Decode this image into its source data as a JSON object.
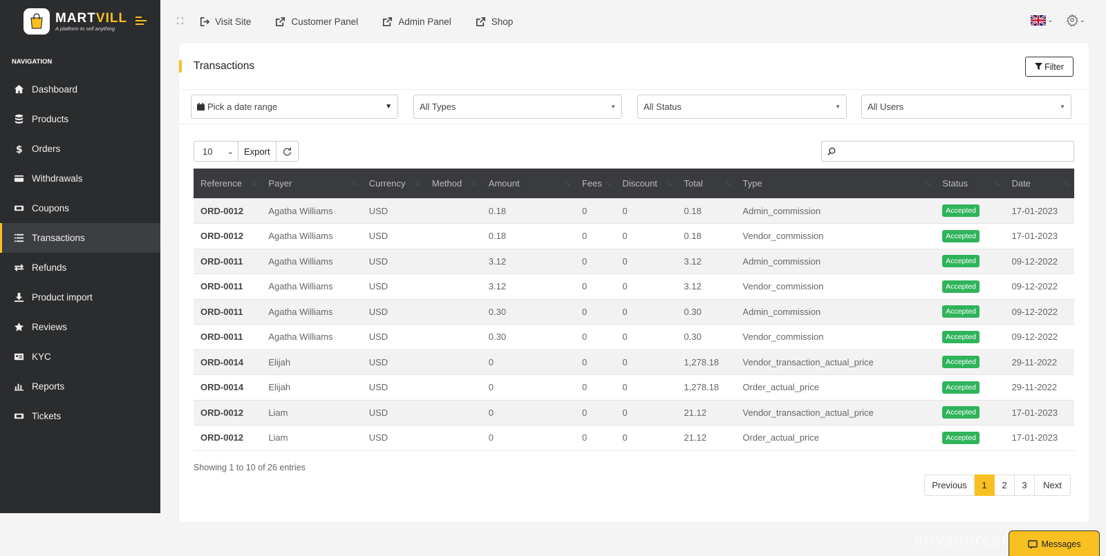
{
  "brand": {
    "name_part1": "MART",
    "name_part2": "VILL",
    "tagline": "A platform to sell anything"
  },
  "sidebar": {
    "heading": "NAVIGATION",
    "items": [
      {
        "label": "Dashboard",
        "icon": "home-icon"
      },
      {
        "label": "Products",
        "icon": "database-icon"
      },
      {
        "label": "Orders",
        "icon": "dollar-icon"
      },
      {
        "label": "Withdrawals",
        "icon": "card-icon"
      },
      {
        "label": "Coupons",
        "icon": "ticket-icon"
      },
      {
        "label": "Transactions",
        "icon": "list-icon",
        "active": true
      },
      {
        "label": "Refunds",
        "icon": "exchange-icon"
      },
      {
        "label": "Product import",
        "icon": "download-icon"
      },
      {
        "label": "Reviews",
        "icon": "star-icon"
      },
      {
        "label": "KYC",
        "icon": "id-card-icon"
      },
      {
        "label": "Reports",
        "icon": "bar-chart-icon"
      },
      {
        "label": "Tickets",
        "icon": "ticket-icon"
      }
    ]
  },
  "topbar": {
    "links": [
      {
        "label": "Visit Site",
        "icon": "sign-in-icon"
      },
      {
        "label": "Customer Panel",
        "icon": "external-link-icon"
      },
      {
        "label": "Admin Panel",
        "icon": "external-link-icon"
      },
      {
        "label": "Shop",
        "icon": "external-link-icon"
      }
    ],
    "language_flag": "uk-flag-icon"
  },
  "page": {
    "title": "Transactions",
    "filter_label": "Filter",
    "date_range_placeholder": "Pick a date range",
    "type_select": "All Types",
    "status_select": "All Status",
    "users_select": "All Users",
    "page_length": "10",
    "export_label": "Export"
  },
  "table": {
    "columns": [
      "Reference",
      "Payer",
      "Currency",
      "Method",
      "Amount",
      "Fees",
      "Discount",
      "Total",
      "Type",
      "Status",
      "Date"
    ],
    "rows": [
      [
        "ORD-0012",
        "Agatha Williams",
        "USD",
        "",
        "0.18",
        "0",
        "0",
        "0.18",
        "Admin_commission",
        "Accepted",
        "17-01-2023"
      ],
      [
        "ORD-0012",
        "Agatha Williams",
        "USD",
        "",
        "0.18",
        "0",
        "0",
        "0.18",
        "Vendor_commission",
        "Accepted",
        "17-01-2023"
      ],
      [
        "ORD-0011",
        "Agatha Williams",
        "USD",
        "",
        "3.12",
        "0",
        "0",
        "3.12",
        "Admin_commission",
        "Accepted",
        "09-12-2022"
      ],
      [
        "ORD-0011",
        "Agatha Williams",
        "USD",
        "",
        "3.12",
        "0",
        "0",
        "3.12",
        "Vendor_commission",
        "Accepted",
        "09-12-2022"
      ],
      [
        "ORD-0011",
        "Agatha Williams",
        "USD",
        "",
        "0.30",
        "0",
        "0",
        "0.30",
        "Admin_commission",
        "Accepted",
        "09-12-2022"
      ],
      [
        "ORD-0011",
        "Agatha Williams",
        "USD",
        "",
        "0.30",
        "0",
        "0",
        "0.30",
        "Vendor_commission",
        "Accepted",
        "09-12-2022"
      ],
      [
        "ORD-0014",
        "Elijah",
        "USD",
        "",
        "0",
        "0",
        "0",
        "1,278.18",
        "Vendor_transaction_actual_price",
        "Accepted",
        "29-11-2022"
      ],
      [
        "ORD-0014",
        "Elijah",
        "USD",
        "",
        "0",
        "0",
        "0",
        "1,278.18",
        "Order_actual_price",
        "Accepted",
        "29-11-2022"
      ],
      [
        "ORD-0012",
        "Liam",
        "USD",
        "",
        "0",
        "0",
        "0",
        "21.12",
        "Vendor_transaction_actual_price",
        "Accepted",
        "17-01-2023"
      ],
      [
        "ORD-0012",
        "Liam",
        "USD",
        "",
        "0",
        "0",
        "0",
        "21.12",
        "Order_actual_price",
        "Accepted",
        "17-01-2023"
      ]
    ]
  },
  "footer": {
    "info": "Showing 1 to 10 of 26 entries",
    "previous": "Previous",
    "pages": [
      "1",
      "2",
      "3"
    ],
    "active_page": "1",
    "next": "Next"
  },
  "messages_label": "Messages",
  "watermark": "anysourcecode.com",
  "colors": {
    "accent": "#f8c021",
    "sidebar_bg": "#2b2c2e",
    "success": "#2fb35b",
    "table_header": "#3a3b3e"
  }
}
